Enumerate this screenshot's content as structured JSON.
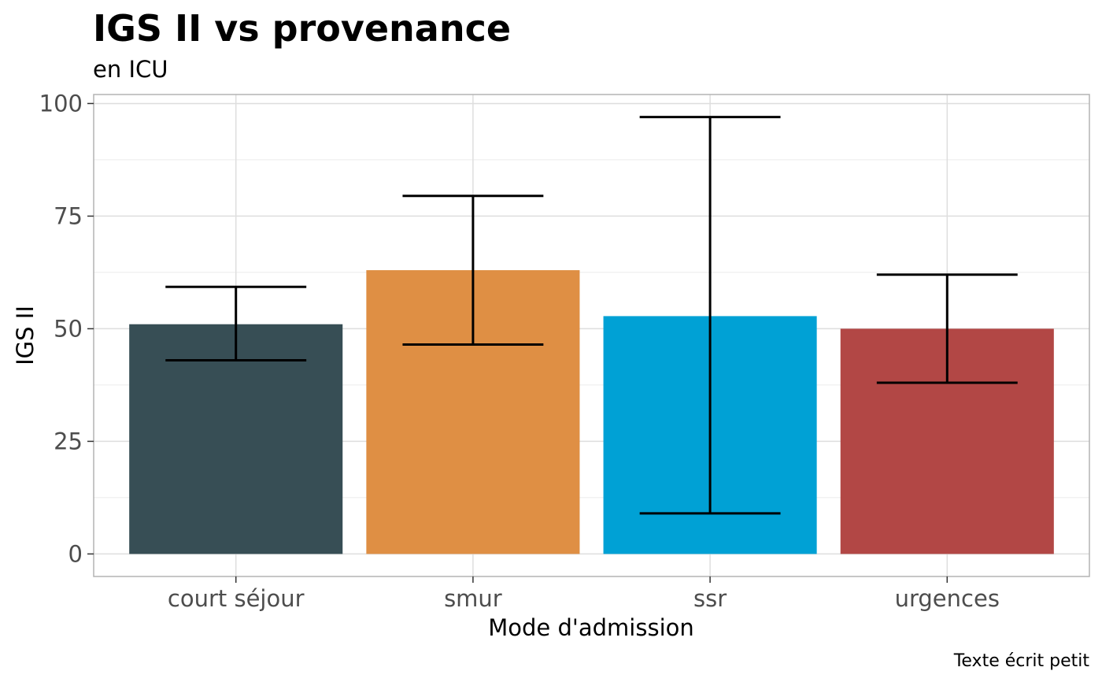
{
  "chart_data": {
    "type": "bar",
    "title": "IGS II vs provenance",
    "subtitle": "en ICU",
    "xlabel": "Mode d'admission",
    "ylabel": "IGS II",
    "caption": "Texte écrit petit",
    "categories": [
      "court séjour",
      "smur",
      "ssr",
      "urgences"
    ],
    "values": [
      51,
      63,
      52.8,
      50
    ],
    "error_low": [
      43,
      46.5,
      9,
      38
    ],
    "error_high": [
      59.3,
      79.5,
      97,
      62
    ],
    "colors": [
      "#374e55",
      "#df8f44",
      "#00a1d5",
      "#b24745"
    ],
    "ylim": [
      -5,
      102
    ],
    "yticks": [
      0,
      25,
      50,
      75,
      100
    ],
    "grid": true,
    "legend": "none"
  }
}
